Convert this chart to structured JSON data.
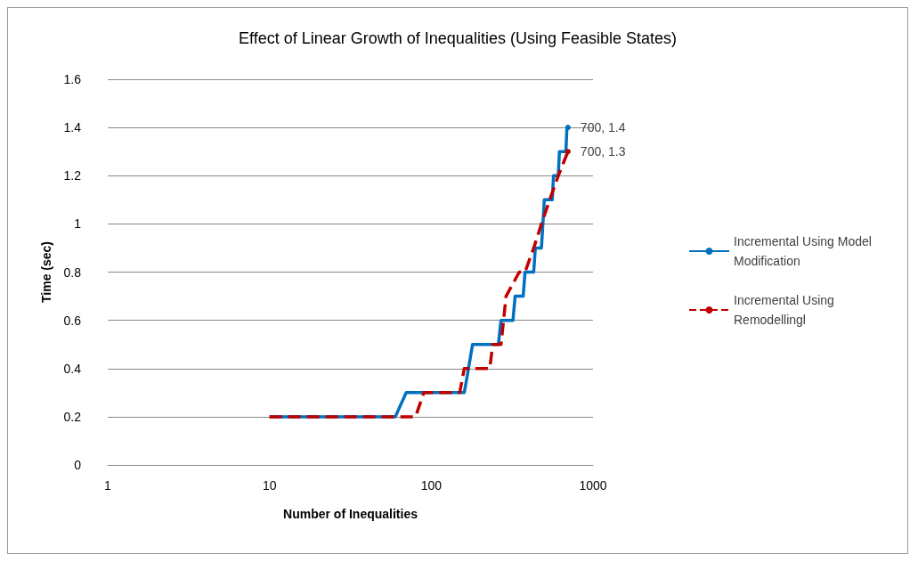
{
  "chart_data": {
    "type": "line",
    "title": "Effect of Linear Growth of Inequalities (Using Feasible States)",
    "xlabel": "Number of Inequalities",
    "ylabel": "Time (sec)",
    "log": "x",
    "xlim": [
      1,
      1000
    ],
    "xticks": [
      1,
      10,
      100,
      1000
    ],
    "ylim": [
      0,
      1.6
    ],
    "yticks": [
      0,
      0.2,
      0.4,
      0.6,
      0.8,
      1,
      1.2,
      1.4,
      1.6
    ],
    "grid": "y",
    "legend": "right",
    "marker": "none",
    "series": [
      {
        "name": "Incremental Using Model Modification",
        "color": "#0070c0",
        "line_style": "solid",
        "x": [
          10,
          60,
          70,
          160,
          170,
          180,
          260,
          270,
          320,
          330,
          370,
          380,
          430,
          440,
          480,
          490,
          500,
          560,
          570,
          610,
          620,
          680,
          690,
          700
        ],
        "values": [
          0.2,
          0.2,
          0.3,
          0.3,
          0.4,
          0.5,
          0.5,
          0.6,
          0.6,
          0.7,
          0.7,
          0.8,
          0.8,
          0.9,
          0.9,
          1.0,
          1.1,
          1.1,
          1.2,
          1.2,
          1.3,
          1.3,
          1.4,
          1.4
        ],
        "value_labels": [
          null,
          null,
          null,
          null,
          null,
          null,
          null,
          null,
          null,
          null,
          null,
          null,
          null,
          null,
          null,
          null,
          null,
          null,
          null,
          null,
          null,
          null,
          null,
          "700, 1.4"
        ]
      },
      {
        "name": "Incremental Using Remodellingl",
        "color": "#c00000",
        "line_style": "dashed",
        "x": [
          10,
          80,
          90,
          150,
          160,
          230,
          240,
          270,
          280,
          290,
          350,
          380,
          430,
          480,
          540,
          610,
          700
        ],
        "values": [
          0.2,
          0.2,
          0.3,
          0.3,
          0.4,
          0.4,
          0.5,
          0.5,
          0.6,
          0.7,
          0.8,
          0.8,
          0.9,
          1.0,
          1.1,
          1.2,
          1.3
        ],
        "value_labels": [
          null,
          null,
          null,
          null,
          null,
          null,
          null,
          null,
          null,
          null,
          null,
          null,
          null,
          null,
          null,
          null,
          "700, 1.3"
        ]
      }
    ]
  }
}
